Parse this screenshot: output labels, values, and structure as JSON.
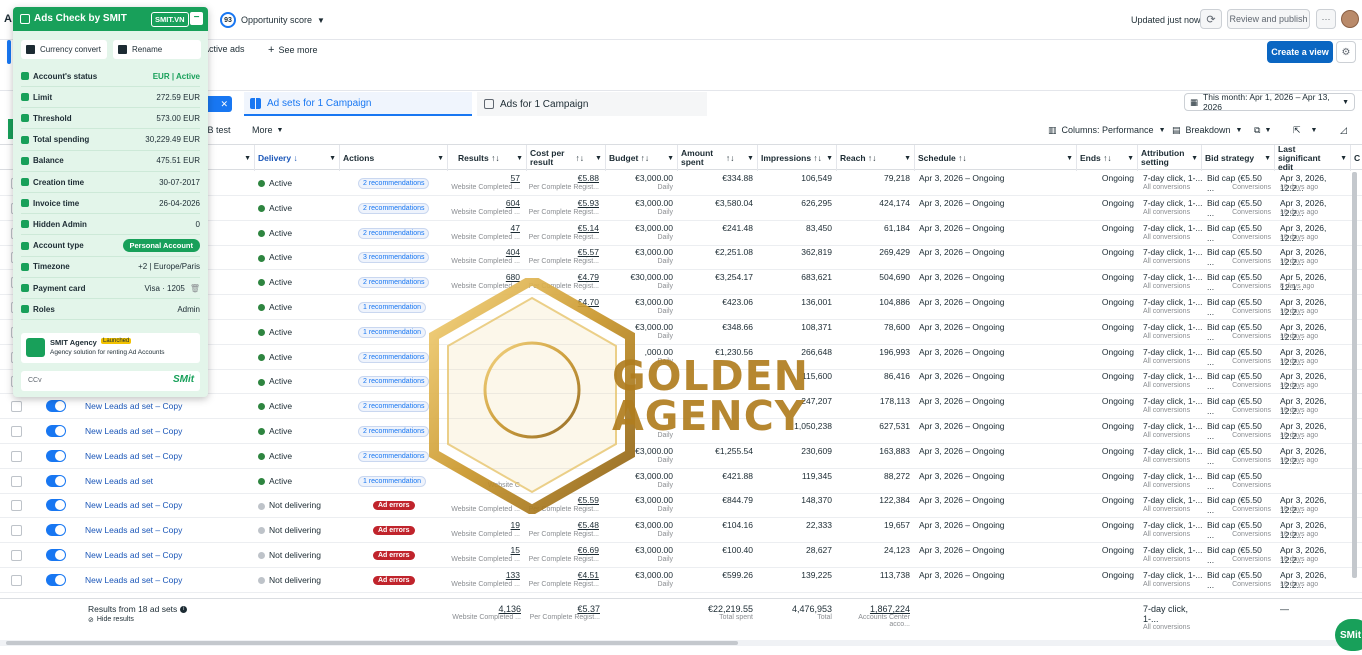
{
  "topbar": {
    "left_letter": "A",
    "score_value": "93",
    "score_label": "Opportunity score",
    "updated": "Updated just now",
    "review_publish": "Review and publish",
    "more_glyph": "···"
  },
  "subbar": {
    "active_ads": "Active ads",
    "see_more": "See more",
    "create_view": "Create a view"
  },
  "tabs": {
    "chip_text": "d",
    "adsets": "Ad sets for 1 Campaign",
    "ads": "Ads for 1 Campaign",
    "date_range": "This month: Apr 1, 2026 – Apr 13, 2026"
  },
  "toolbar": {
    "ab_test": "/B test",
    "more": "More",
    "columns": "Columns: Performance",
    "breakdown": "Breakdown"
  },
  "columns": {
    "delivery": "Delivery ↓",
    "actions": "Actions",
    "results": "Results ↑↓",
    "cpr_1": "Cost per",
    "cpr_2": "result",
    "cpr_sort": "↑↓",
    "budget": "Budget ↑↓",
    "spent_1": "Amount",
    "spent_2": "spent",
    "spent_sort": "↑↓",
    "impressions": "Impressions ↑↓",
    "reach": "Reach ↑↓",
    "schedule": "Schedule ↑↓",
    "ends": "Ends ↑↓",
    "attr_1": "Attribution",
    "attr_2": "setting",
    "bid": "Bid strategy",
    "edit_1": "Last significant",
    "edit_2": "edit",
    "next": "C"
  },
  "rows": [
    {
      "name": "",
      "delivery": "Active",
      "status": "active",
      "actions": "2 recommendations",
      "results": "57",
      "results_sub": "Website Completed ...",
      "cpr": "€5.88",
      "cpr_sub": "Per Complete Regist...",
      "budget": "€3,000.00",
      "budget_sub": "Daily",
      "spent": "€334.88",
      "impressions": "106,549",
      "reach": "79,218",
      "schedule": "Apr 3, 2026 – Ongoing",
      "ends": "Ongoing",
      "attr": "7-day click, 1-...",
      "attr_sub": "All conversions",
      "bid": "Bid cap (€5.50 ...",
      "bid_sub": "Conversions",
      "edit": "Apr 3, 2026, 12:2...",
      "edit_sub": "10 days ago"
    },
    {
      "name": "",
      "delivery": "Active",
      "status": "active",
      "actions": "2 recommendations",
      "results": "604",
      "results_sub": "Website Completed ...",
      "cpr": "€5.93",
      "cpr_sub": "Per Complete Regist...",
      "budget": "€3,000.00",
      "budget_sub": "Daily",
      "spent": "€3,580.04",
      "impressions": "626,295",
      "reach": "424,174",
      "schedule": "Apr 3, 2026 – Ongoing",
      "ends": "Ongoing",
      "attr": "7-day click, 1-...",
      "attr_sub": "All conversions",
      "bid": "Bid cap (€5.50 ...",
      "bid_sub": "Conversions",
      "edit": "Apr 3, 2026, 12:2...",
      "edit_sub": "10 days ago"
    },
    {
      "name": "",
      "delivery": "Active",
      "status": "active",
      "actions": "2 recommendations",
      "results": "47",
      "results_sub": "Website Completed ...",
      "cpr": "€5.14",
      "cpr_sub": "Per Complete Regist...",
      "budget": "€3,000.00",
      "budget_sub": "Daily",
      "spent": "€241.48",
      "impressions": "83,450",
      "reach": "61,184",
      "schedule": "Apr 3, 2026 – Ongoing",
      "ends": "Ongoing",
      "attr": "7-day click, 1-...",
      "attr_sub": "All conversions",
      "bid": "Bid cap (€5.50 ...",
      "bid_sub": "Conversions",
      "edit": "Apr 3, 2026, 12:2...",
      "edit_sub": "10 days ago"
    },
    {
      "name": "",
      "delivery": "Active",
      "status": "active",
      "actions": "3 recommendations",
      "results": "404",
      "results_sub": "Website Completed ...",
      "cpr": "€5.57",
      "cpr_sub": "Per Complete Regist...",
      "budget": "€3,000.00",
      "budget_sub": "Daily",
      "spent": "€2,251.08",
      "impressions": "362,819",
      "reach": "269,429",
      "schedule": "Apr 3, 2026 – Ongoing",
      "ends": "Ongoing",
      "attr": "7-day click, 1-...",
      "attr_sub": "All conversions",
      "bid": "Bid cap (€5.50 ...",
      "bid_sub": "Conversions",
      "edit": "Apr 3, 2026, 12:2...",
      "edit_sub": "10 days ago"
    },
    {
      "name": "",
      "delivery": "Active",
      "status": "active",
      "actions": "2 recommendations",
      "results": "680",
      "results_sub": "Website Completed ...",
      "cpr": "€4.79",
      "cpr_sub": "Per Complete Regist...",
      "budget": "€30,000.00",
      "budget_sub": "Daily",
      "spent": "€3,254.17",
      "impressions": "683,621",
      "reach": "504,690",
      "schedule": "Apr 3, 2026 – Ongoing",
      "ends": "Ongoing",
      "attr": "7-day click, 1-...",
      "attr_sub": "All conversions",
      "bid": "Bid cap (€5.50 ...",
      "bid_sub": "Conversions",
      "edit": "Apr 5, 2026, 12:1...",
      "edit_sub": "8 days ago"
    },
    {
      "name": "",
      "delivery": "Active",
      "status": "active",
      "actions": "1 recommendation",
      "results": "",
      "results_sub": "",
      "cpr": "€4.70",
      "cpr_sub": "",
      "budget": "€3,000.00",
      "budget_sub": "Daily",
      "spent": "€423.06",
      "impressions": "136,001",
      "reach": "104,886",
      "schedule": "Apr 3, 2026 – Ongoing",
      "ends": "Ongoing",
      "attr": "7-day click, 1-...",
      "attr_sub": "All conversions",
      "bid": "Bid cap (€5.50 ...",
      "bid_sub": "Conversions",
      "edit": "Apr 3, 2026, 12:2...",
      "edit_sub": "10 days ago"
    },
    {
      "name": "",
      "delivery": "Active",
      "status": "active",
      "actions": "1 recommendation",
      "results": "",
      "results_sub": "",
      "cpr": "",
      "cpr_sub": "",
      "budget": "€3,000.00",
      "budget_sub": "Daily",
      "spent": "€348.66",
      "impressions": "108,371",
      "reach": "78,600",
      "schedule": "Apr 3, 2026 – Ongoing",
      "ends": "Ongoing",
      "attr": "7-day click, 1-...",
      "attr_sub": "All conversions",
      "bid": "Bid cap (€5.50 ...",
      "bid_sub": "Conversions",
      "edit": "Apr 3, 2026, 12:2...",
      "edit_sub": "10 days ago"
    },
    {
      "name": "",
      "delivery": "Active",
      "status": "active",
      "actions": "2 recommendations",
      "results": "",
      "results_sub": "",
      "cpr": "",
      "cpr_sub": "",
      "budget": ",000.00",
      "budget_sub": "Daily",
      "spent": "€1,230.56",
      "impressions": "266,648",
      "reach": "196,993",
      "schedule": "Apr 3, 2026 – Ongoing",
      "ends": "Ongoing",
      "attr": "7-day click, 1-...",
      "attr_sub": "All conversions",
      "bid": "Bid cap (€5.50 ...",
      "bid_sub": "Conversions",
      "edit": "Apr 3, 2026, 12:2...",
      "edit_sub": "10 days ago"
    },
    {
      "name": "",
      "delivery": "Active",
      "status": "active",
      "actions": "2 recommendations",
      "results": "",
      "results_sub": "",
      "cpr": "",
      "cpr_sub": "",
      "budget": "",
      "budget_sub": "",
      "spent": "",
      "impressions": "115,600",
      "reach": "86,416",
      "schedule": "Apr 3, 2026 – Ongoing",
      "ends": "Ongoing",
      "attr": "7-day click, 1-...",
      "attr_sub": "All conversions",
      "bid": "Bid cap (€5.50 ...",
      "bid_sub": "Conversions",
      "edit": "Apr 3, 2026, 12:2...",
      "edit_sub": "10 days ago"
    },
    {
      "name": "New Leads ad set – Copy",
      "delivery": "Active",
      "status": "active",
      "actions": "2 recommendations",
      "results": "",
      "results_sub": "",
      "cpr": "",
      "cpr_sub": "",
      "budget": "",
      "budget_sub": "",
      "spent": "",
      "impressions": "247,207",
      "reach": "178,113",
      "schedule": "Apr 3, 2026 – Ongoing",
      "ends": "Ongoing",
      "attr": "7-day click, 1-...",
      "attr_sub": "All conversions",
      "bid": "Bid cap (€5.50 ...",
      "bid_sub": "Conversions",
      "edit": "Apr 3, 2026, 12:2...",
      "edit_sub": "10 days ago"
    },
    {
      "name": "New Leads ad set – Copy",
      "delivery": "Active",
      "status": "active",
      "actions": "2 recommendations",
      "results": "",
      "results_sub": "",
      "cpr": "",
      "cpr_sub": "",
      "budget": "",
      "budget_sub": "Daily",
      "spent": "",
      "impressions": "1,050,238",
      "reach": "627,531",
      "schedule": "Apr 3, 2026 – Ongoing",
      "ends": "Ongoing",
      "attr": "7-day click, 1-...",
      "attr_sub": "All conversions",
      "bid": "Bid cap (€5.50 ...",
      "bid_sub": "Conversions",
      "edit": "Apr 3, 2026, 12:2...",
      "edit_sub": "10 days ago"
    },
    {
      "name": "New Leads ad set – Copy",
      "delivery": "Active",
      "status": "active",
      "actions": "2 recommendations",
      "results": "",
      "results_sub": "",
      "cpr": "",
      "cpr_sub": "",
      "budget": "€3,000.00",
      "budget_sub": "Daily",
      "spent": "€1,255.54",
      "impressions": "230,609",
      "reach": "163,883",
      "schedule": "Apr 3, 2026 – Ongoing",
      "ends": "Ongoing",
      "attr": "7-day click, 1-...",
      "attr_sub": "All conversions",
      "bid": "Bid cap (€5.50 ...",
      "bid_sub": "Conversions",
      "edit": "Apr 3, 2026, 12:2...",
      "edit_sub": "10 days ago"
    },
    {
      "name": "New Leads ad set",
      "delivery": "Active",
      "status": "active",
      "actions": "1 recommendation",
      "results": "",
      "results_sub": "Website C",
      "cpr": "",
      "cpr_sub": "",
      "budget": "€3,000.00",
      "budget_sub": "Daily",
      "spent": "€421.88",
      "impressions": "119,345",
      "reach": "88,272",
      "schedule": "Apr 3, 2026 – Ongoing",
      "ends": "Ongoing",
      "attr": "7-day click, 1-...",
      "attr_sub": "All conversions",
      "bid": "Bid cap (€5.50 ...",
      "bid_sub": "Conversions",
      "edit": "",
      "edit_sub": ""
    },
    {
      "name": "New Leads ad set – Copy",
      "delivery": "Not delivering",
      "status": "off",
      "actions": "Ad errors",
      "results": "",
      "results_sub": "Website Completed ...",
      "cpr": "€5.59",
      "cpr_sub": "Per Complete Regist...",
      "budget": "€3,000.00",
      "budget_sub": "Daily",
      "spent": "€844.79",
      "impressions": "148,370",
      "reach": "122,384",
      "schedule": "Apr 3, 2026 – Ongoing",
      "ends": "Ongoing",
      "attr": "7-day click, 1-...",
      "attr_sub": "All conversions",
      "bid": "Bid cap (€5.50 ...",
      "bid_sub": "Conversions",
      "edit": "Apr 3, 2026, 12:2...",
      "edit_sub": "10 days ago"
    },
    {
      "name": "New Leads ad set – Copy",
      "delivery": "Not delivering",
      "status": "off",
      "actions": "Ad errors",
      "results": "19",
      "results_sub": "Website Completed ...",
      "cpr": "€5.48",
      "cpr_sub": "Per Complete Regist...",
      "budget": "€3,000.00",
      "budget_sub": "Daily",
      "spent": "€104.16",
      "impressions": "22,333",
      "reach": "19,657",
      "schedule": "Apr 3, 2026 – Ongoing",
      "ends": "Ongoing",
      "attr": "7-day click, 1-...",
      "attr_sub": "All conversions",
      "bid": "Bid cap (€5.50 ...",
      "bid_sub": "Conversions",
      "edit": "Apr 3, 2026, 12:2...",
      "edit_sub": "10 days ago"
    },
    {
      "name": "New Leads ad set – Copy",
      "delivery": "Not delivering",
      "status": "off",
      "actions": "Ad errors",
      "results": "15",
      "results_sub": "Website Completed ...",
      "cpr": "€6.69",
      "cpr_sub": "Per Complete Regist...",
      "budget": "€3,000.00",
      "budget_sub": "Daily",
      "spent": "€100.40",
      "impressions": "28,627",
      "reach": "24,123",
      "schedule": "Apr 3, 2026 – Ongoing",
      "ends": "Ongoing",
      "attr": "7-day click, 1-...",
      "attr_sub": "All conversions",
      "bid": "Bid cap (€5.50 ...",
      "bid_sub": "Conversions",
      "edit": "Apr 3, 2026, 12:2...",
      "edit_sub": "10 days ago"
    },
    {
      "name": "New Leads ad set – Copy",
      "delivery": "Not delivering",
      "status": "off",
      "actions": "Ad errors",
      "results": "133",
      "results_sub": "Website Completed ...",
      "cpr": "€4.51",
      "cpr_sub": "Per Complete Regist...",
      "budget": "€3,000.00",
      "budget_sub": "Daily",
      "spent": "€599.26",
      "impressions": "139,225",
      "reach": "113,738",
      "schedule": "Apr 3, 2026 – Ongoing",
      "ends": "Ongoing",
      "attr": "7-day click, 1-...",
      "attr_sub": "All conversions",
      "bid": "Bid cap (€5.50 ...",
      "bid_sub": "Conversions",
      "edit": "Apr 3, 2026, 12:2...",
      "edit_sub": "10 days ago"
    }
  ],
  "footer": {
    "results_from": "Results from 18 ad sets",
    "hide_results": "Hide results",
    "results": "4,136",
    "results_sub": "Website Completed ...",
    "cpr": "€5.37",
    "cpr_sub": "Per Complete Regist...",
    "spent": "€22,219.55",
    "spent_sub": "Total spent",
    "impressions": "4,476,953",
    "impressions_sub": "Total",
    "reach": "1,867,224",
    "reach_sub": "Accounts Center acco...",
    "attr": "7-day click, 1-...",
    "attr_sub": "All conversions",
    "edit": "—"
  },
  "panel": {
    "title": "Ads Check by SMIT",
    "badge": "SMIT.VN",
    "currency_convert": "Currency convert",
    "rename": "Rename",
    "fields": [
      {
        "label": "Account's status",
        "value": "EUR | Active",
        "green": true
      },
      {
        "label": "Limit",
        "value": "272.59 EUR"
      },
      {
        "label": "Threshold",
        "value": "573.00 EUR"
      },
      {
        "label": "Total spending",
        "value": "30,229.49 EUR"
      },
      {
        "label": "Balance",
        "value": "475.51 EUR"
      },
      {
        "label": "Creation time",
        "value": "30-07-2017"
      },
      {
        "label": "Invoice time",
        "value": "26-04-2026"
      },
      {
        "label": "Hidden Admin",
        "value": "0"
      },
      {
        "label": "Account type",
        "value": "Personal Account",
        "badge": true
      },
      {
        "label": "Timezone",
        "value": "+2 | Europe/Paris"
      },
      {
        "label": "Payment card",
        "value": "Visa · 1205"
      },
      {
        "label": "Roles",
        "value": "Admin"
      }
    ],
    "agency_name": "SMIT Agency",
    "agency_tag": "Launched",
    "agency_desc": "Agency solution for renting Ad Accounts",
    "ccv": "CCv",
    "smit_logo": "SMit"
  },
  "watermark": {
    "line1": "GOLDEN",
    "line2": "AGENCY"
  },
  "bottom_badge": "SMit",
  "colors": {
    "accent": "#1877f2",
    "primary_button": "#0a66c2",
    "panel_green": "#18a05a",
    "panel_bg": "#e3f5ea",
    "error_red": "#c0242c",
    "gold": "#c9962a"
  },
  "icons": [
    "refresh-icon",
    "more-icon",
    "settings-icon",
    "calendar-icon",
    "columns-icon",
    "breakdown-icon",
    "export-icon",
    "chart-icon",
    "trash-icon",
    "info-icon"
  ]
}
